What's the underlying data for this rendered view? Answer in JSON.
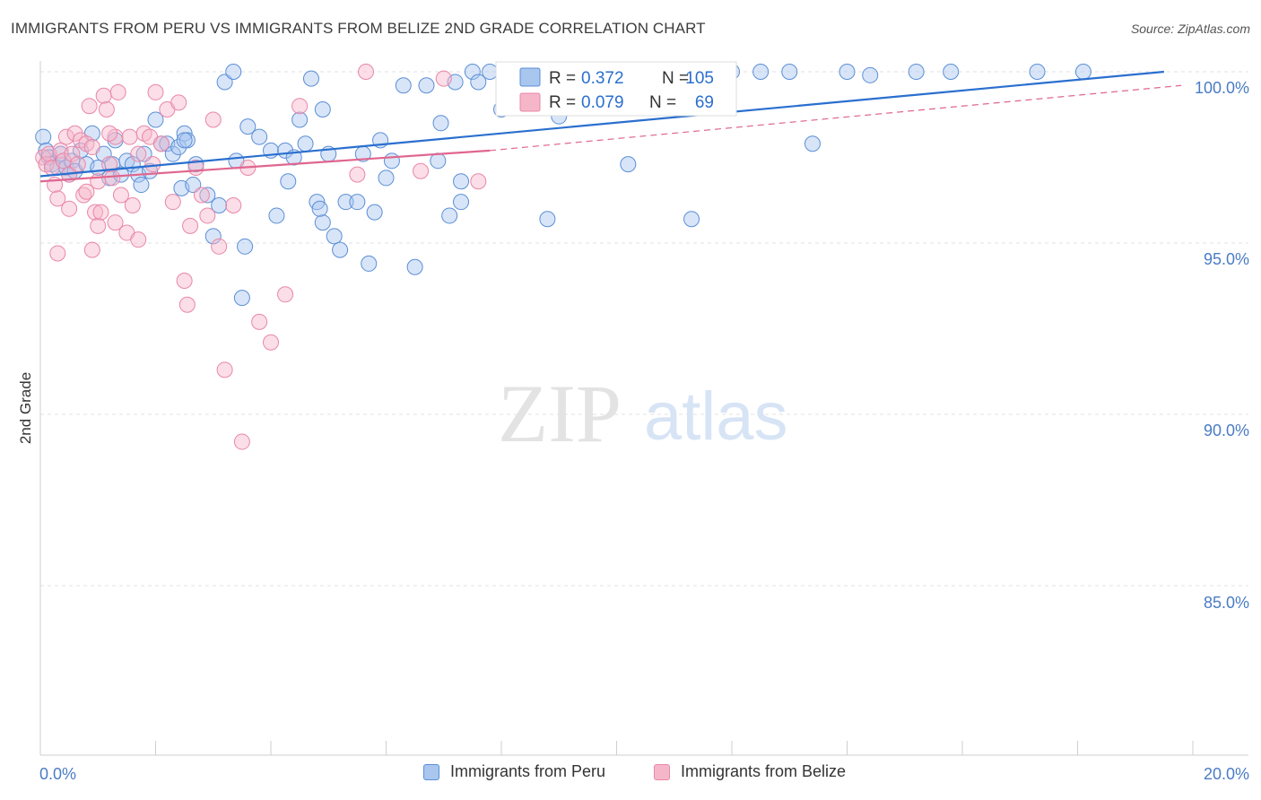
{
  "header": {
    "title": "IMMIGRANTS FROM PERU VS IMMIGRANTS FROM BELIZE 2ND GRADE CORRELATION CHART",
    "source": "Source: ZipAtlas.com"
  },
  "watermark": {
    "zip": "ZIP",
    "atlas": "atlas"
  },
  "colors": {
    "peru_fill": "#a9c6ef",
    "peru_stroke": "#5b8fd6",
    "peru_line": "#2a6fcf",
    "belize_fill": "#f6b6ca",
    "belize_stroke": "#e987a8",
    "belize_line": "#e0668f",
    "axis_text": "#4a7cc4"
  },
  "legend": {
    "rows": [
      {
        "r_label": "R =",
        "r_value": "0.372",
        "n_label": "N =",
        "n_value": "105"
      },
      {
        "r_label": "R =",
        "r_value": "0.079",
        "n_label": "N =",
        "n_value": "69"
      }
    ]
  },
  "bottom_legend": {
    "peru": "Immigrants from Peru",
    "belize": "Immigrants from Belize"
  },
  "chart_data": {
    "type": "scatter",
    "title": "IMMIGRANTS FROM PERU VS IMMIGRANTS FROM BELIZE 2ND GRADE CORRELATION CHART",
    "xlabel": "",
    "ylabel": "2nd Grade",
    "xlim": [
      0,
      20
    ],
    "ylim": [
      80.5,
      100.8
    ],
    "x_tick_labels": [
      "0.0%",
      "20.0%"
    ],
    "y_ticks": [
      85,
      90,
      95,
      100
    ],
    "y_tick_labels": [
      "85.0%",
      "90.0%",
      "95.0%",
      "100.0%"
    ],
    "grid": true,
    "series": [
      {
        "name": "Immigrants from Peru",
        "R": 0.372,
        "N": 105,
        "trend": {
          "x": [
            0,
            19.5
          ],
          "y": [
            96.95,
            100.0
          ]
        },
        "points": [
          [
            0.05,
            98.1
          ],
          [
            0.1,
            97.7
          ],
          [
            0.15,
            97.5
          ],
          [
            0.2,
            97.3
          ],
          [
            0.3,
            97.2
          ],
          [
            0.35,
            97.6
          ],
          [
            0.4,
            97.4
          ],
          [
            0.45,
            97.2
          ],
          [
            0.5,
            97.0
          ],
          [
            0.55,
            97.4
          ],
          [
            0.6,
            97.1
          ],
          [
            0.7,
            97.7
          ],
          [
            0.8,
            97.3
          ],
          [
            0.9,
            98.2
          ],
          [
            1.0,
            97.2
          ],
          [
            1.1,
            97.6
          ],
          [
            1.2,
            96.9
          ],
          [
            1.25,
            97.3
          ],
          [
            1.3,
            98.0
          ],
          [
            1.4,
            97.0
          ],
          [
            1.5,
            97.4
          ],
          [
            1.6,
            97.3
          ],
          [
            1.7,
            97.0
          ],
          [
            1.75,
            96.7
          ],
          [
            1.8,
            97.6
          ],
          [
            1.9,
            97.1
          ],
          [
            2.0,
            98.6
          ],
          [
            2.1,
            97.9
          ],
          [
            2.2,
            97.9
          ],
          [
            2.3,
            97.6
          ],
          [
            2.4,
            97.8
          ],
          [
            2.45,
            96.6
          ],
          [
            2.5,
            98.2
          ],
          [
            2.55,
            98.0
          ],
          [
            2.65,
            96.7
          ],
          [
            2.7,
            97.3
          ],
          [
            2.9,
            96.4
          ],
          [
            3.0,
            95.2
          ],
          [
            3.1,
            96.1
          ],
          [
            3.2,
            99.7
          ],
          [
            3.35,
            100.0
          ],
          [
            3.4,
            97.4
          ],
          [
            3.6,
            98.4
          ],
          [
            3.8,
            98.1
          ],
          [
            4.0,
            97.7
          ],
          [
            4.1,
            95.8
          ],
          [
            4.25,
            97.7
          ],
          [
            4.3,
            96.8
          ],
          [
            4.4,
            97.5
          ],
          [
            4.5,
            98.6
          ],
          [
            4.6,
            97.9
          ],
          [
            4.7,
            99.8
          ],
          [
            4.8,
            96.2
          ],
          [
            4.9,
            98.9
          ],
          [
            5.0,
            97.6
          ],
          [
            5.1,
            95.2
          ],
          [
            5.2,
            94.8
          ],
          [
            5.3,
            96.2
          ],
          [
            5.5,
            96.2
          ],
          [
            5.6,
            97.6
          ],
          [
            5.7,
            94.4
          ],
          [
            5.8,
            95.9
          ],
          [
            5.9,
            98.0
          ],
          [
            6.1,
            97.4
          ],
          [
            6.3,
            99.6
          ],
          [
            6.5,
            94.3
          ],
          [
            6.7,
            99.6
          ],
          [
            6.9,
            97.4
          ],
          [
            7.1,
            95.8
          ],
          [
            7.2,
            99.7
          ],
          [
            7.3,
            96.8
          ],
          [
            7.5,
            100.0
          ],
          [
            7.6,
            99.7
          ],
          [
            7.8,
            100.0
          ],
          [
            8.0,
            98.9
          ],
          [
            8.2,
            100.0
          ],
          [
            8.6,
            99.4
          ],
          [
            8.8,
            95.7
          ],
          [
            9.0,
            100.0
          ],
          [
            9.4,
            100.0
          ],
          [
            9.6,
            99.2
          ],
          [
            9.9,
            99.2
          ],
          [
            10.2,
            97.3
          ],
          [
            10.6,
            100.0
          ],
          [
            11.3,
            100.0
          ],
          [
            12.0,
            100.0
          ],
          [
            12.5,
            100.0
          ],
          [
            13.0,
            100.0
          ],
          [
            13.4,
            97.9
          ],
          [
            14.0,
            100.0
          ],
          [
            14.4,
            99.9
          ],
          [
            15.2,
            100.0
          ],
          [
            15.8,
            100.0
          ],
          [
            17.3,
            100.0
          ],
          [
            18.1,
            100.0
          ],
          [
            2.5,
            98.0
          ],
          [
            7.3,
            96.2
          ],
          [
            3.55,
            94.9
          ],
          [
            4.9,
            95.6
          ],
          [
            4.85,
            96.0
          ],
          [
            6.95,
            98.5
          ],
          [
            9.0,
            98.7
          ],
          [
            11.3,
            95.7
          ],
          [
            3.5,
            93.4
          ],
          [
            6.0,
            96.9
          ]
        ]
      },
      {
        "name": "Immigrants from Belize",
        "R": 0.079,
        "N": 69,
        "trend": {
          "x": [
            0,
            7.8
          ],
          "y": [
            96.8,
            97.7
          ]
        },
        "trend_extension": {
          "x": [
            7.8,
            19.8
          ],
          "y": [
            97.7,
            99.6
          ]
        },
        "points": [
          [
            0.05,
            97.5
          ],
          [
            0.1,
            97.3
          ],
          [
            0.15,
            97.6
          ],
          [
            0.2,
            97.2
          ],
          [
            0.25,
            96.7
          ],
          [
            0.3,
            96.3
          ],
          [
            0.35,
            97.7
          ],
          [
            0.4,
            97.4
          ],
          [
            0.45,
            98.1
          ],
          [
            0.5,
            97.0
          ],
          [
            0.55,
            97.6
          ],
          [
            0.6,
            98.2
          ],
          [
            0.65,
            97.3
          ],
          [
            0.7,
            98.0
          ],
          [
            0.75,
            96.4
          ],
          [
            0.8,
            97.9
          ],
          [
            0.85,
            99.0
          ],
          [
            0.9,
            97.8
          ],
          [
            0.95,
            95.9
          ],
          [
            1.0,
            95.5
          ],
          [
            1.05,
            95.9
          ],
          [
            1.1,
            99.3
          ],
          [
            1.15,
            98.9
          ],
          [
            1.2,
            97.3
          ],
          [
            1.25,
            96.9
          ],
          [
            1.3,
            98.1
          ],
          [
            1.35,
            99.4
          ],
          [
            1.4,
            96.4
          ],
          [
            1.5,
            95.3
          ],
          [
            1.55,
            98.1
          ],
          [
            1.6,
            96.1
          ],
          [
            1.7,
            97.6
          ],
          [
            1.8,
            98.2
          ],
          [
            1.9,
            98.1
          ],
          [
            2.0,
            99.4
          ],
          [
            2.1,
            97.9
          ],
          [
            2.2,
            98.9
          ],
          [
            2.3,
            96.2
          ],
          [
            2.4,
            99.1
          ],
          [
            2.5,
            93.9
          ],
          [
            2.55,
            93.2
          ],
          [
            2.7,
            97.2
          ],
          [
            2.8,
            96.4
          ],
          [
            2.9,
            95.8
          ],
          [
            3.0,
            98.6
          ],
          [
            3.1,
            94.9
          ],
          [
            3.2,
            91.3
          ],
          [
            3.35,
            96.1
          ],
          [
            3.5,
            89.2
          ],
          [
            3.6,
            97.2
          ],
          [
            3.8,
            92.7
          ],
          [
            4.0,
            92.1
          ],
          [
            4.25,
            93.5
          ],
          [
            4.5,
            99.0
          ],
          [
            0.5,
            96.0
          ],
          [
            0.8,
            96.5
          ],
          [
            1.2,
            98.2
          ],
          [
            1.95,
            97.3
          ],
          [
            5.5,
            97.0
          ],
          [
            6.6,
            97.1
          ],
          [
            7.0,
            99.8
          ],
          [
            7.6,
            96.8
          ],
          [
            0.9,
            94.8
          ],
          [
            1.7,
            95.1
          ],
          [
            1.3,
            95.6
          ],
          [
            2.6,
            95.5
          ],
          [
            0.3,
            94.7
          ],
          [
            1.0,
            96.8
          ],
          [
            5.65,
            100.0
          ]
        ]
      }
    ]
  }
}
